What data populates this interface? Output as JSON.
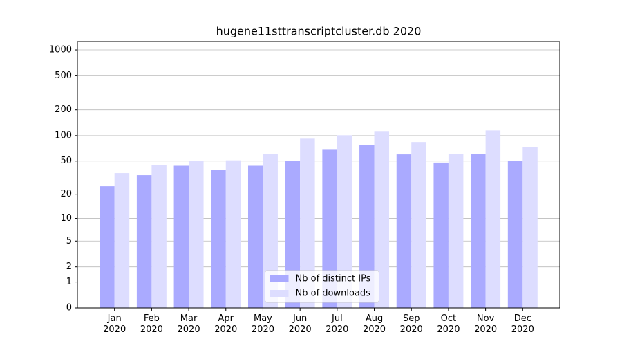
{
  "chart_data": {
    "type": "bar",
    "title": "hugene11sttranscriptcluster.db 2020",
    "categories": [
      "Jan\n2020",
      "Feb\n2020",
      "Mar\n2020",
      "Apr\n2020",
      "May\n2020",
      "Jun\n2020",
      "Jul\n2020",
      "Aug\n2020",
      "Sep\n2020",
      "Oct\n2020",
      "Nov\n2020",
      "Dec\n2020"
    ],
    "series": [
      {
        "name": "Nb of distinct IPs",
        "color": "#aaaaff",
        "values": [
          25,
          34,
          44,
          39,
          44,
          50,
          68,
          78,
          60,
          48,
          61,
          50
        ]
      },
      {
        "name": "Nb of downloads",
        "color": "#ddddff",
        "values": [
          36,
          45,
          50,
          51,
          61,
          92,
          101,
          111,
          84,
          61,
          115,
          73
        ]
      }
    ],
    "yscale": "log1p",
    "ylim": [
      0,
      1250
    ],
    "yticks": [
      0,
      1,
      2,
      5,
      10,
      20,
      50,
      100,
      200,
      500,
      1000
    ],
    "grid": true,
    "legend": "lower center"
  }
}
